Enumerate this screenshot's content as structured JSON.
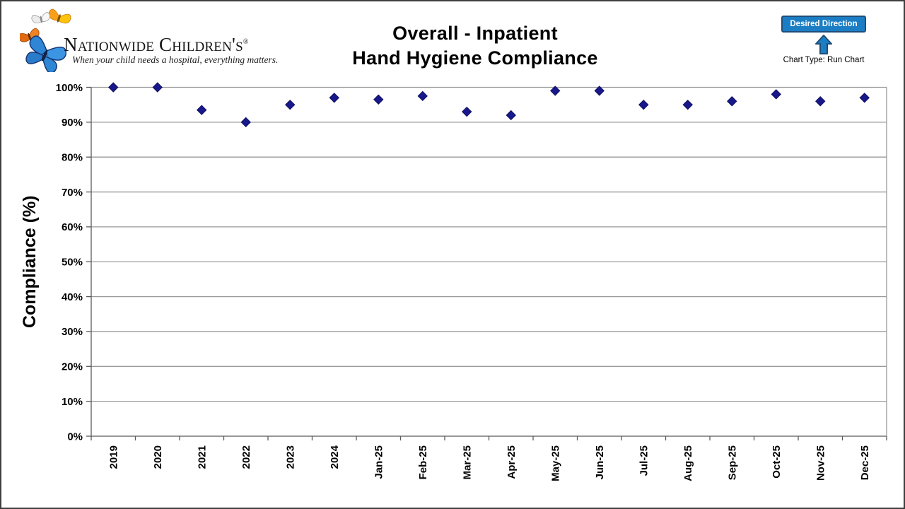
{
  "logo": {
    "name": "Nationwide Children's",
    "registered_mark": "®",
    "tagline": "When your child needs a hospital, everything matters."
  },
  "header": {
    "title_line1": "Overall - Inpatient",
    "title_line2": "Hand Hygiene Compliance",
    "desired_direction_label": "Desired Direction",
    "chart_type_label": "Chart Type: Run Chart"
  },
  "colors": {
    "marker": "#18188c",
    "marker_edge": "#10105e",
    "gridline": "#9a9a9a",
    "axis": "#5a5a5a",
    "accent_blue": "#1b7ec4",
    "accent_blue_dark": "#1f4e79"
  },
  "chart_data": {
    "type": "scatter",
    "subtype": "run-chart-markers-only",
    "title": "Overall - Inpatient Hand Hygiene Compliance",
    "categories": [
      "2019",
      "2020",
      "2021",
      "2022",
      "2023",
      "2024",
      "Jan-25",
      "Feb-25",
      "Mar-25",
      "Apr-25",
      "May-25",
      "Jun-25",
      "Jul-25",
      "Aug-25",
      "Sep-25",
      "Oct-25",
      "Nov-25",
      "Dec-25"
    ],
    "values": [
      100,
      100,
      93.5,
      90,
      95,
      97,
      96.5,
      97.5,
      93,
      92,
      99,
      99,
      95,
      95,
      96,
      98,
      96,
      97
    ],
    "xlabel": "",
    "ylabel": "Compliance (%)",
    "ylim": [
      0,
      100
    ],
    "ytick_step": 10,
    "ytick_suffix": "%",
    "grid": true,
    "legend_position": "none",
    "marker_shape": "diamond"
  }
}
